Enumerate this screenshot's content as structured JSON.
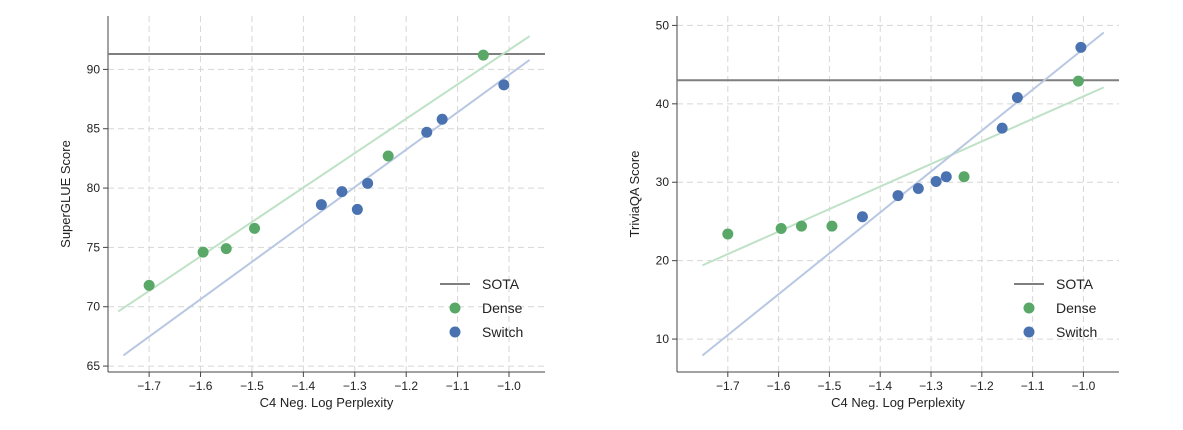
{
  "chart_data": [
    {
      "type": "scatter",
      "xlabel": "C4 Neg. Log Perplexity",
      "ylabel": "SuperGLUE Score",
      "xlim": [
        -1.78,
        -0.93
      ],
      "ylim": [
        64.5,
        94.5
      ],
      "xticks": [
        -1.7,
        -1.6,
        -1.5,
        -1.4,
        -1.3,
        -1.2,
        -1.1,
        -1.0
      ],
      "xtick_labels": [
        "−1.7",
        "−1.6",
        "−1.5",
        "−1.4",
        "−1.3",
        "−1.2",
        "−1.1",
        "−1.0"
      ],
      "yticks": [
        65,
        70,
        75,
        80,
        85,
        90
      ],
      "ytick_labels": [
        "65",
        "70",
        "75",
        "80",
        "85",
        "90"
      ],
      "grid": true,
      "legend_position": "bottom-right",
      "sota": {
        "name": "SOTA",
        "value": 91.3,
        "color": "#7f7f7f"
      },
      "series": [
        {
          "name": "Dense",
          "color": "#59a868",
          "fit_color": "#bfe2c6",
          "x": [
            -1.7,
            -1.595,
            -1.55,
            -1.495,
            -1.235,
            -1.05
          ],
          "y": [
            71.8,
            74.6,
            74.9,
            76.6,
            82.7,
            91.2
          ],
          "fit": {
            "x": [
              -1.76,
              -0.96
            ],
            "y": [
              69.6,
              92.8
            ]
          }
        },
        {
          "name": "Switch",
          "color": "#4a72b0",
          "fit_color": "#b9c8e2",
          "x": [
            -1.365,
            -1.325,
            -1.295,
            -1.275,
            -1.16,
            -1.13,
            -1.01
          ],
          "y": [
            78.6,
            79.7,
            78.2,
            80.4,
            84.7,
            85.8,
            88.7
          ],
          "fit": {
            "x": [
              -1.75,
              -0.96
            ],
            "y": [
              65.9,
              90.8
            ]
          }
        }
      ]
    },
    {
      "type": "scatter",
      "xlabel": "C4 Neg. Log Perplexity",
      "ylabel": "TriviaQA Score",
      "xlim": [
        -1.8,
        -0.93
      ],
      "ylim": [
        5.8,
        51.2
      ],
      "xticks": [
        -1.7,
        -1.6,
        -1.5,
        -1.4,
        -1.3,
        -1.2,
        -1.1,
        -1.0
      ],
      "xtick_labels": [
        "−1.7",
        "−1.6",
        "−1.5",
        "−1.4",
        "−1.3",
        "−1.2",
        "−1.1",
        "−1.0"
      ],
      "yticks": [
        10,
        20,
        30,
        40,
        50
      ],
      "ytick_labels": [
        "10",
        "20",
        "30",
        "40",
        "50"
      ],
      "grid": true,
      "legend_position": "bottom-right",
      "sota": {
        "name": "SOTA",
        "value": 43.0,
        "color": "#7f7f7f"
      },
      "series": [
        {
          "name": "Dense",
          "color": "#59a868",
          "fit_color": "#bfe2c6",
          "x": [
            -1.7,
            -1.595,
            -1.555,
            -1.495,
            -1.235,
            -1.01
          ],
          "y": [
            23.4,
            24.1,
            24.4,
            24.4,
            30.7,
            42.9
          ],
          "fit": {
            "x": [
              -1.75,
              -0.96
            ],
            "y": [
              19.4,
              42.1
            ]
          }
        },
        {
          "name": "Switch",
          "color": "#4a72b0",
          "fit_color": "#b9c8e2",
          "x": [
            -1.435,
            -1.365,
            -1.325,
            -1.29,
            -1.27,
            -1.16,
            -1.13,
            -1.005
          ],
          "y": [
            25.6,
            28.3,
            29.2,
            30.1,
            30.7,
            36.9,
            40.8,
            47.2
          ],
          "fit": {
            "x": [
              -1.75,
              -0.96
            ],
            "y": [
              7.9,
              49.1
            ]
          }
        }
      ]
    }
  ]
}
